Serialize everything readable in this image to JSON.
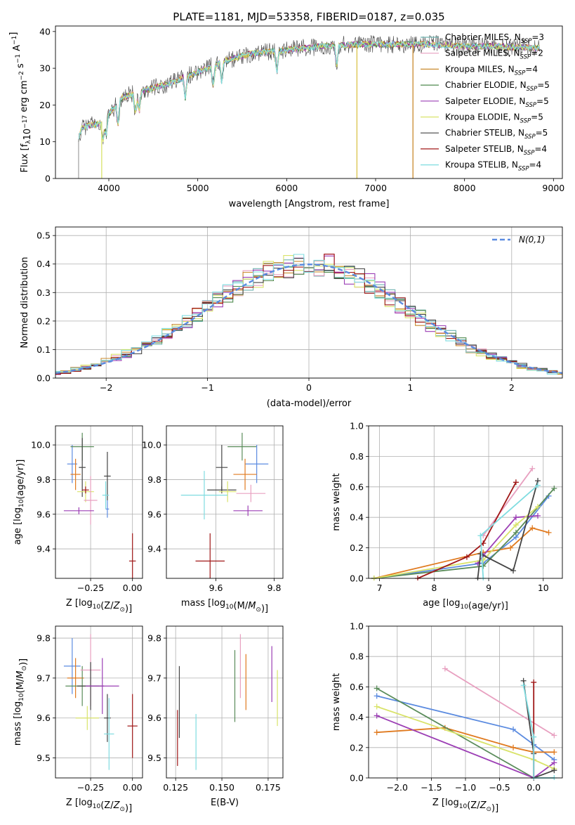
{
  "figure_title": "PLATE=1181, MJD=53358, FIBERID=0187, z=0.035",
  "models": [
    {
      "name": "Chabrier MILES",
      "nssp": "3",
      "color": "#6fb3b0"
    },
    {
      "name": "Salpeter MILES",
      "nssp": "2",
      "color": "#e8a0c0"
    },
    {
      "name": "Kroupa MILES",
      "nssp": "4",
      "color": "#c98a2e"
    },
    {
      "name": "Chabrier ELODIE",
      "nssp": "5",
      "color": "#4e8a4e"
    },
    {
      "name": "Salpeter ELODIE",
      "nssp": "5",
      "color": "#9c3fb5"
    },
    {
      "name": "Kroupa ELODIE",
      "nssp": "5",
      "color": "#d9e36a"
    },
    {
      "name": "Chabrier STELIB",
      "nssp": "5",
      "color": "#444444"
    },
    {
      "name": "Salpeter STELIB",
      "nssp": "4",
      "color": "#a01818"
    },
    {
      "name": "Kroupa STELIB",
      "nssp": "4",
      "color": "#7fdce0"
    }
  ],
  "chart_data": [
    {
      "id": "spectrum",
      "type": "line",
      "xlabel": "wavelength [Angstrom, rest frame]",
      "ylabel": "Flux [f_λ10^-17 erg cm^-2 s^-1 A^-1]",
      "xlim": [
        3400,
        9100
      ],
      "ylim": [
        0,
        41.5
      ],
      "xticks": [
        4000,
        5000,
        6000,
        7000,
        8000,
        9000
      ],
      "yticks": [
        0,
        10,
        20,
        30,
        40
      ],
      "grid": false,
      "legend": "top-right",
      "continuum": [
        [
          3650,
          10
        ],
        [
          3700,
          14
        ],
        [
          3900,
          15
        ],
        [
          4050,
          19
        ],
        [
          4150,
          22
        ],
        [
          4400,
          24
        ],
        [
          4700,
          26
        ],
        [
          5000,
          29
        ],
        [
          5300,
          32
        ],
        [
          5600,
          34
        ],
        [
          6000,
          35
        ],
        [
          6400,
          36
        ],
        [
          6800,
          36.5
        ],
        [
          7200,
          36.5
        ],
        [
          7600,
          36.5
        ],
        [
          8000,
          36
        ],
        [
          8400,
          36
        ],
        [
          8800,
          35.5
        ]
      ],
      "absorption_lines": [
        3933,
        3968,
        4102,
        4300,
        4340,
        4861,
        5175,
        5270,
        5890,
        6563
      ],
      "drops": [
        [
          3660,
          0
        ],
        [
          3920,
          0
        ],
        [
          6790,
          0
        ],
        [
          7420,
          0
        ]
      ]
    },
    {
      "id": "residuals",
      "type": "area",
      "xlabel": "(data-model)/error",
      "ylabel": "Normed distribution",
      "xlim": [
        -2.5,
        2.5
      ],
      "ylim": [
        0,
        0.53
      ],
      "xticks": [
        -2,
        -1,
        0,
        1,
        2
      ],
      "yticks": [
        0.0,
        0.1,
        0.2,
        0.3,
        0.4,
        0.5
      ],
      "grid": true,
      "legend": "top-right",
      "reference_label": "N(0,1)",
      "reference_color": "#5b8be0"
    },
    {
      "id": "z-vs-age",
      "type": "scatter",
      "xlabel": "Z [log10(Z/Z⊙)]",
      "ylabel": "age  [log10(age/yr)]",
      "xlim": [
        -0.46,
        0.06
      ],
      "ylim": [
        9.23,
        10.11
      ],
      "xticks": [
        -0.25,
        0.0
      ],
      "yticks": [
        9.4,
        9.6,
        9.8,
        10.0
      ],
      "grid": true,
      "points": [
        {
          "x": -0.36,
          "y": 9.89,
          "xerr": 0.03,
          "yerr": 0.11,
          "color": "#5b8be0"
        },
        {
          "x": -0.34,
          "y": 9.83,
          "xerr": 0.03,
          "yerr": 0.09,
          "color": "#e07a1f"
        },
        {
          "x": -0.3,
          "y": 9.99,
          "xerr": 0.07,
          "yerr": 0.08,
          "color": "#5a8c5a"
        },
        {
          "x": -0.3,
          "y": 9.87,
          "xerr": 0.02,
          "yerr": 0.17,
          "color": "#444444"
        },
        {
          "x": -0.28,
          "y": 9.73,
          "xerr": 0.05,
          "yerr": 0.06,
          "color": "#d9e36a"
        },
        {
          "x": -0.25,
          "y": 9.68,
          "xerr": 0.04,
          "yerr": 0.14,
          "color": "#e8a0c0"
        },
        {
          "x": -0.15,
          "y": 9.82,
          "xerr": 0.02,
          "yerr": 0.14,
          "color": "#444444"
        },
        {
          "x": -0.15,
          "y": 9.63,
          "xerr": 0.01,
          "yerr": 0.05,
          "color": "#5b8be0"
        },
        {
          "x": -0.16,
          "y": 9.71,
          "xerr": 0.02,
          "yerr": 0.08,
          "color": "#7fdce0"
        },
        {
          "x": -0.32,
          "y": 9.62,
          "xerr": 0.09,
          "yerr": 0.02,
          "color": "#9c3fb5"
        },
        {
          "x": -0.28,
          "y": 9.74,
          "xerr": 0.02,
          "yerr": 0.02,
          "color": "#a01818"
        },
        {
          "x": 0.0,
          "y": 9.33,
          "xerr": 0.02,
          "yerr": 0.16,
          "color": "#a01818"
        }
      ]
    },
    {
      "id": "mass-vs-age",
      "type": "scatter",
      "xlabel": "mass [log10(M/M⊙)]",
      "ylabel": "",
      "xlim": [
        9.43,
        9.83
      ],
      "ylim": [
        9.23,
        10.11
      ],
      "xticks": [
        9.6,
        9.8
      ],
      "yticks": [
        9.4,
        9.6,
        9.8,
        10.0
      ],
      "grid": true,
      "points": [
        {
          "x": 9.69,
          "y": 9.99,
          "xerr": 0.05,
          "yerr": 0.08,
          "color": "#5a8c5a"
        },
        {
          "x": 9.74,
          "y": 9.89,
          "xerr": 0.04,
          "yerr": 0.11,
          "color": "#5b8be0"
        },
        {
          "x": 9.7,
          "y": 9.83,
          "xerr": 0.04,
          "yerr": 0.09,
          "color": "#e07a1f"
        },
        {
          "x": 9.62,
          "y": 9.74,
          "xerr": 0.05,
          "yerr": 0.02,
          "color": "#444444"
        },
        {
          "x": 9.62,
          "y": 9.87,
          "xerr": 0.02,
          "yerr": 0.13,
          "color": "#444444"
        },
        {
          "x": 9.64,
          "y": 9.73,
          "xerr": 0.03,
          "yerr": 0.06,
          "color": "#d9e36a"
        },
        {
          "x": 9.72,
          "y": 9.72,
          "xerr": 0.05,
          "yerr": 0.05,
          "color": "#e8a0c0"
        },
        {
          "x": 9.71,
          "y": 9.62,
          "xerr": 0.05,
          "yerr": 0.03,
          "color": "#9c3fb5"
        },
        {
          "x": 9.56,
          "y": 9.71,
          "xerr": 0.08,
          "yerr": 0.14,
          "color": "#7fdce0"
        },
        {
          "x": 9.58,
          "y": 9.33,
          "xerr": 0.05,
          "yerr": 0.16,
          "color": "#a01818"
        }
      ]
    },
    {
      "id": "age-vs-weight",
      "type": "line",
      "xlabel": "age  [log10(age/yr)]",
      "ylabel": "mass weight",
      "xlim": [
        6.8,
        10.35
      ],
      "ylim": [
        0,
        1.0
      ],
      "xticks": [
        7,
        8,
        9,
        10
      ],
      "yticks": [
        0.0,
        0.2,
        0.4,
        0.6,
        0.8,
        1.0
      ],
      "grid": true,
      "series": [
        {
          "color": "#5b8be0",
          "points": [
            [
              6.9,
              0.0
            ],
            [
              8.9,
              0.1
            ],
            [
              9.5,
              0.27
            ],
            [
              10.1,
              0.54
            ]
          ]
        },
        {
          "color": "#e07a1f",
          "points": [
            [
              6.9,
              0.0
            ],
            [
              8.9,
              0.17
            ],
            [
              9.4,
              0.2
            ],
            [
              9.8,
              0.33
            ],
            [
              10.1,
              0.3
            ]
          ]
        },
        {
          "color": "#5a8c5a",
          "points": [
            [
              6.9,
              0.0
            ],
            [
              8.9,
              0.08
            ],
            [
              9.5,
              0.3
            ],
            [
              10.2,
              0.59
            ]
          ]
        },
        {
          "color": "#e8a0c0",
          "points": [
            [
              8.9,
              0.28
            ],
            [
              9.8,
              0.72
            ]
          ]
        },
        {
          "color": "#9c3fb5",
          "points": [
            [
              8.8,
              0.1
            ],
            [
              8.9,
              0.15
            ],
            [
              9.5,
              0.4
            ],
            [
              9.9,
              0.41
            ]
          ]
        },
        {
          "color": "#d9e36a",
          "points": [
            [
              6.9,
              0.0
            ],
            [
              8.9,
              0.12
            ],
            [
              9.5,
              0.35
            ],
            [
              9.9,
              0.47
            ]
          ]
        },
        {
          "color": "#444444",
          "points": [
            [
              8.8,
              0.0
            ],
            [
              8.85,
              0.16
            ],
            [
              9.45,
              0.05
            ],
            [
              9.9,
              0.64
            ]
          ]
        },
        {
          "color": "#a01818",
          "points": [
            [
              7.7,
              0.0
            ],
            [
              8.6,
              0.14
            ],
            [
              8.9,
              0.23
            ],
            [
              9.5,
              0.63
            ]
          ]
        },
        {
          "color": "#7fdce0",
          "points": [
            [
              8.9,
              0.0
            ],
            [
              8.85,
              0.28
            ],
            [
              9.9,
              0.61
            ]
          ]
        }
      ]
    },
    {
      "id": "z-vs-mass",
      "type": "scatter",
      "xlabel": "Z [log10(Z/Z⊙)]",
      "ylabel": "mass [log10(M/M⊙)]",
      "xlim": [
        -0.46,
        0.06
      ],
      "ylim": [
        9.45,
        9.83
      ],
      "xticks": [
        -0.25,
        0.0
      ],
      "yticks": [
        9.5,
        9.6,
        9.7,
        9.8
      ],
      "grid": true,
      "points": [
        {
          "x": -0.36,
          "y": 9.73,
          "xerr": 0.05,
          "yerr": 0.07,
          "color": "#5b8be0"
        },
        {
          "x": -0.34,
          "y": 9.7,
          "xerr": 0.05,
          "yerr": 0.05,
          "color": "#e07a1f"
        },
        {
          "x": -0.3,
          "y": 9.68,
          "xerr": 0.1,
          "yerr": 0.05,
          "color": "#5a8c5a"
        },
        {
          "x": -0.25,
          "y": 9.72,
          "xerr": 0.06,
          "yerr": 0.09,
          "color": "#e8a0c0"
        },
        {
          "x": -0.25,
          "y": 9.68,
          "xerr": 0.08,
          "yerr": 0.06,
          "color": "#444444"
        },
        {
          "x": -0.18,
          "y": 9.68,
          "xerr": 0.1,
          "yerr": 0.07,
          "color": "#9c3fb5"
        },
        {
          "x": -0.27,
          "y": 9.6,
          "xerr": 0.07,
          "yerr": 0.03,
          "color": "#d9e36a"
        },
        {
          "x": -0.15,
          "y": 9.6,
          "xerr": 0.02,
          "yerr": 0.06,
          "color": "#444444"
        },
        {
          "x": -0.14,
          "y": 9.56,
          "xerr": 0.03,
          "yerr": 0.09,
          "color": "#7fdce0"
        },
        {
          "x": 0.0,
          "y": 9.58,
          "xerr": 0.03,
          "yerr": 0.08,
          "color": "#a01818"
        }
      ]
    },
    {
      "id": "ebv-vs-mass",
      "type": "scatter",
      "xlabel": "E(B-V)",
      "ylabel": "",
      "xlim": [
        0.12,
        0.183
      ],
      "ylim": [
        9.45,
        9.83
      ],
      "xticks": [
        0.125,
        0.15,
        0.175
      ],
      "yticks": [
        9.5,
        9.6,
        9.7,
        9.8
      ],
      "grid": true,
      "points": [
        {
          "x": 0.126,
          "y": 9.55,
          "xerr": 0,
          "yerr": 0.07,
          "color": "#a01818"
        },
        {
          "x": 0.127,
          "y": 9.64,
          "xerr": 0,
          "yerr": 0.09,
          "color": "#444444"
        },
        {
          "x": 0.136,
          "y": 9.54,
          "xerr": 0,
          "yerr": 0.07,
          "color": "#7fdce0"
        },
        {
          "x": 0.157,
          "y": 9.68,
          "xerr": 0,
          "yerr": 0.09,
          "color": "#5a8c5a"
        },
        {
          "x": 0.16,
          "y": 9.73,
          "xerr": 0,
          "yerr": 0.08,
          "color": "#e8a0c0"
        },
        {
          "x": 0.163,
          "y": 9.69,
          "xerr": 0,
          "yerr": 0.07,
          "color": "#e07a1f"
        },
        {
          "x": 0.177,
          "y": 9.71,
          "xerr": 0,
          "yerr": 0.07,
          "color": "#9c3fb5"
        },
        {
          "x": 0.18,
          "y": 9.65,
          "xerr": 0,
          "yerr": 0.07,
          "color": "#d9e36a"
        }
      ]
    },
    {
      "id": "z-vs-weight",
      "type": "line",
      "xlabel": "Z [log10(Z/Z⊙)]",
      "ylabel": "mass weight",
      "xlim": [
        -2.42,
        0.42
      ],
      "ylim": [
        0,
        1.0
      ],
      "xticks": [
        -2.0,
        -1.5,
        -1.0,
        -0.5,
        0.0
      ],
      "yticks": [
        0.0,
        0.2,
        0.4,
        0.6,
        0.8,
        1.0
      ],
      "grid": true,
      "series": [
        {
          "color": "#5b8be0",
          "points": [
            [
              -2.3,
              0.54
            ],
            [
              -0.3,
              0.32
            ],
            [
              0.0,
              0.22
            ],
            [
              0.3,
              0.12
            ]
          ]
        },
        {
          "color": "#e07a1f",
          "points": [
            [
              -2.3,
              0.3
            ],
            [
              -1.3,
              0.33
            ],
            [
              -0.3,
              0.2
            ],
            [
              0.0,
              0.17
            ],
            [
              0.3,
              0.17
            ]
          ]
        },
        {
          "color": "#5a8c5a",
          "points": [
            [
              -2.3,
              0.59
            ],
            [
              0.0,
              0.0
            ]
          ]
        },
        {
          "color": "#e8a0c0",
          "points": [
            [
              -1.3,
              0.72
            ],
            [
              0.3,
              0.28
            ]
          ]
        },
        {
          "color": "#9c3fb5",
          "points": [
            [
              -2.3,
              0.41
            ],
            [
              0.0,
              0.0
            ],
            [
              0.3,
              0.1
            ]
          ]
        },
        {
          "color": "#d9e36a",
          "points": [
            [
              -2.3,
              0.47
            ],
            [
              0.0,
              0.12
            ],
            [
              0.3,
              0.06
            ]
          ]
        },
        {
          "color": "#444444",
          "points": [
            [
              -0.15,
              0.64
            ],
            [
              0.0,
              0.16
            ],
            [
              0.0,
              0.0
            ],
            [
              0.3,
              0.05
            ]
          ]
        },
        {
          "color": "#a01818",
          "points": [
            [
              0.0,
              0.63
            ],
            [
              0.0,
              0.0
            ]
          ]
        },
        {
          "color": "#7fdce0",
          "points": [
            [
              -0.15,
              0.61
            ],
            [
              0.0,
              0.27
            ],
            [
              0.0,
              0.0
            ],
            [
              0.3,
              0.0
            ]
          ]
        }
      ]
    }
  ]
}
